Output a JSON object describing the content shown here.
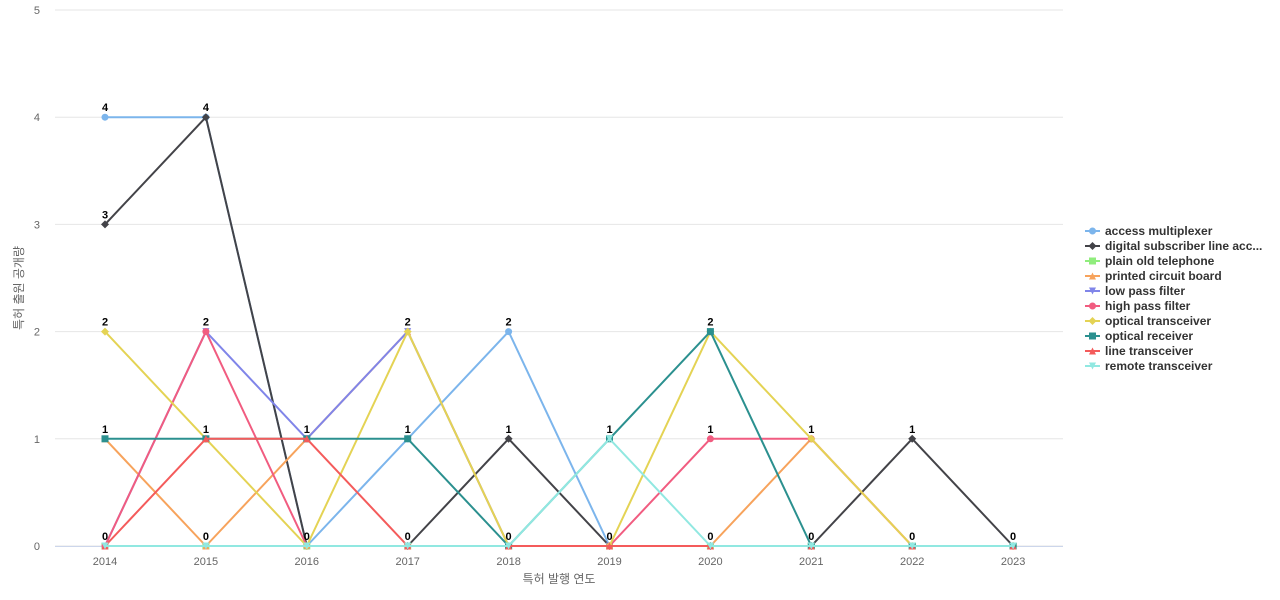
{
  "chart_data": {
    "type": "line",
    "title": "",
    "xlabel": "특허 발행 연도",
    "ylabel": "특허 출원 공개량",
    "x": [
      "2014",
      "2015",
      "2016",
      "2017",
      "2018",
      "2019",
      "2020",
      "2021",
      "2022",
      "2023"
    ],
    "ylim": [
      0,
      5
    ],
    "yticks": [
      "0",
      "1",
      "2",
      "3",
      "4",
      "5"
    ],
    "grid": true,
    "legend_position": "right",
    "series": [
      {
        "name": "access multiplexer",
        "color": "#7cb5ec",
        "marker": "circle",
        "values": [
          4,
          4,
          0,
          1,
          2,
          0,
          0,
          0,
          0,
          0
        ]
      },
      {
        "name": "digital subscriber line acc...",
        "color": "#434348",
        "marker": "diamond",
        "values": [
          3,
          4,
          0,
          0,
          1,
          0,
          0,
          0,
          1,
          0
        ]
      },
      {
        "name": "plain old telephone",
        "color": "#90ed7d",
        "marker": "square",
        "values": [
          0,
          0,
          0,
          0,
          0,
          0,
          0,
          0,
          0,
          0
        ]
      },
      {
        "name": "printed circuit board",
        "color": "#f7a35c",
        "marker": "triangle",
        "values": [
          1,
          0,
          1,
          2,
          0,
          0,
          0,
          1,
          0,
          0
        ]
      },
      {
        "name": "low pass filter",
        "color": "#8085e9",
        "marker": "triangle-down",
        "values": [
          0,
          2,
          1,
          2,
          0,
          0,
          0,
          0,
          0,
          0
        ]
      },
      {
        "name": "high pass filter",
        "color": "#f15c80",
        "marker": "circle",
        "values": [
          0,
          2,
          0,
          0,
          0,
          0,
          1,
          1,
          0,
          0
        ]
      },
      {
        "name": "optical transceiver",
        "color": "#e4d354",
        "marker": "diamond",
        "values": [
          2,
          1,
          0,
          2,
          0,
          0,
          2,
          1,
          0,
          0
        ]
      },
      {
        "name": "optical receiver",
        "color": "#2b908f",
        "marker": "square",
        "values": [
          1,
          1,
          1,
          1,
          0,
          1,
          2,
          0,
          0,
          0
        ]
      },
      {
        "name": "line transceiver",
        "color": "#f45b5b",
        "marker": "triangle",
        "values": [
          0,
          1,
          1,
          0,
          0,
          0,
          0,
          0,
          0,
          0
        ]
      },
      {
        "name": "remote transceiver",
        "color": "#91e8e1",
        "marker": "triangle-down",
        "values": [
          0,
          0,
          0,
          0,
          0,
          1,
          0,
          0,
          0,
          0
        ]
      }
    ],
    "data_labels": [
      {
        "x": "2014",
        "value": 4,
        "text": "4"
      },
      {
        "x": "2014",
        "value": 3,
        "text": "3"
      },
      {
        "x": "2014",
        "value": 2,
        "text": "2"
      },
      {
        "x": "2014",
        "value": 1,
        "text": "1"
      },
      {
        "x": "2014",
        "value": 0,
        "text": "0"
      },
      {
        "x": "2015",
        "value": 4,
        "text": "4"
      },
      {
        "x": "2015",
        "value": 2,
        "text": "2"
      },
      {
        "x": "2015",
        "value": 1,
        "text": "1"
      },
      {
        "x": "2015",
        "value": 0,
        "text": "0"
      },
      {
        "x": "2016",
        "value": 1,
        "text": "1"
      },
      {
        "x": "2016",
        "value": 0,
        "text": "0"
      },
      {
        "x": "2017",
        "value": 2,
        "text": "2"
      },
      {
        "x": "2017",
        "value": 1,
        "text": "1"
      },
      {
        "x": "2017",
        "value": 0,
        "text": "0"
      },
      {
        "x": "2018",
        "value": 2,
        "text": "2"
      },
      {
        "x": "2018",
        "value": 1,
        "text": "1"
      },
      {
        "x": "2018",
        "value": 0,
        "text": "0"
      },
      {
        "x": "2019",
        "value": 1,
        "text": "1"
      },
      {
        "x": "2019",
        "value": 0,
        "text": "0"
      },
      {
        "x": "2020",
        "value": 2,
        "text": "2"
      },
      {
        "x": "2020",
        "value": 1,
        "text": "1"
      },
      {
        "x": "2020",
        "value": 0,
        "text": "0"
      },
      {
        "x": "2021",
        "value": 1,
        "text": "1"
      },
      {
        "x": "2021",
        "value": 0,
        "text": "0"
      },
      {
        "x": "2022",
        "value": 1,
        "text": "1"
      },
      {
        "x": "2022",
        "value": 0,
        "text": "0"
      },
      {
        "x": "2023",
        "value": 0,
        "text": "0"
      }
    ]
  }
}
